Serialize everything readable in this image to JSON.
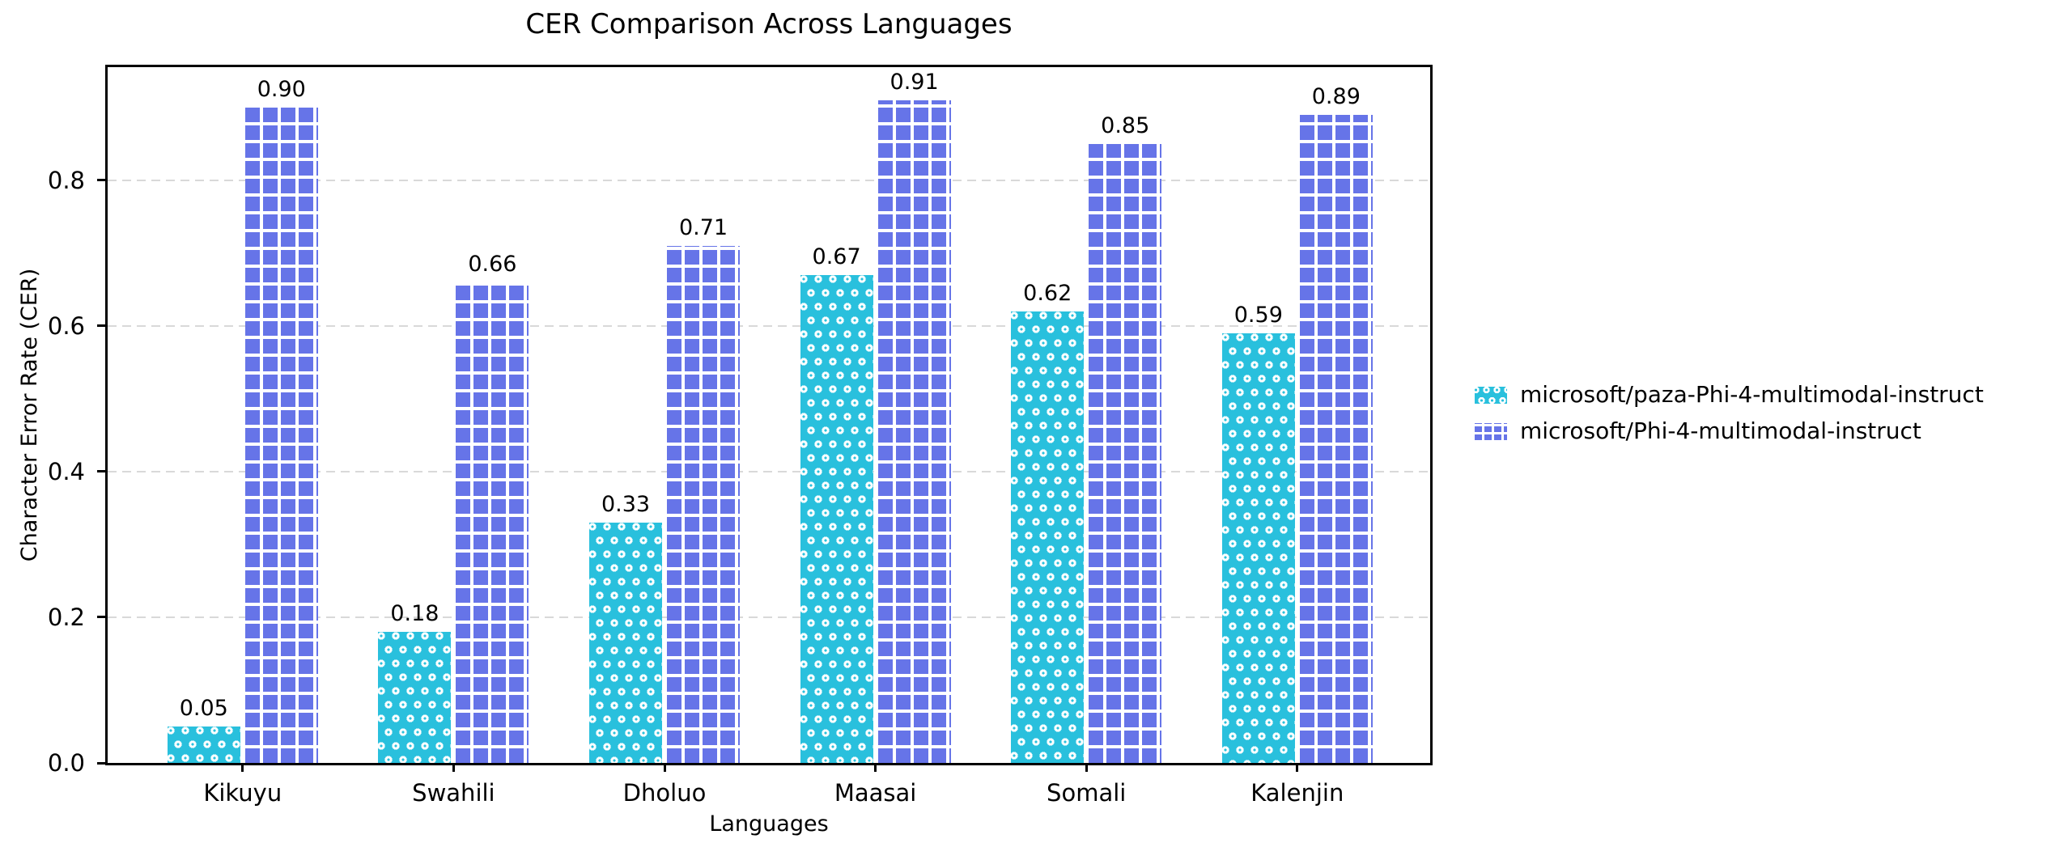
{
  "chart_data": {
    "type": "bar",
    "title": "CER Comparison Across Languages",
    "xlabel": "Languages",
    "ylabel": "Character Error Rate (CER)",
    "categories": [
      "Kikuyu",
      "Swahili",
      "Dholuo",
      "Maasai",
      "Somali",
      "Kalenjin"
    ],
    "series": [
      {
        "name": "microsoft/paza-Phi-4-multimodal-instruct",
        "color": "#29c0dd",
        "hatch": "circles",
        "values": [
          0.05,
          0.18,
          0.33,
          0.67,
          0.62,
          0.59
        ],
        "labels": [
          "0.05",
          "0.18",
          "0.33",
          "0.67",
          "0.62",
          "0.59"
        ]
      },
      {
        "name": "microsoft/Phi-4-multimodal-instruct",
        "color": "#6674e8",
        "hatch": "grid",
        "values": [
          0.9,
          0.66,
          0.71,
          0.91,
          0.85,
          0.89
        ],
        "labels": [
          "0.90",
          "0.66",
          "0.71",
          "0.91",
          "0.85",
          "0.89"
        ]
      }
    ],
    "yticks": [
      {
        "value": 0.0,
        "label": "0.0"
      },
      {
        "value": 0.2,
        "label": "0.2"
      },
      {
        "value": 0.4,
        "label": "0.4"
      },
      {
        "value": 0.6,
        "label": "0.6"
      },
      {
        "value": 0.8,
        "label": "0.8"
      }
    ],
    "ylim": [
      0,
      0.955
    ],
    "grid": {
      "axis": "y",
      "style": "dashed",
      "color": "#d9d9d9"
    },
    "legend": {
      "position": "center-right",
      "frame": false
    },
    "hatch_color": "#ffffff",
    "spine_color": "#000000"
  }
}
